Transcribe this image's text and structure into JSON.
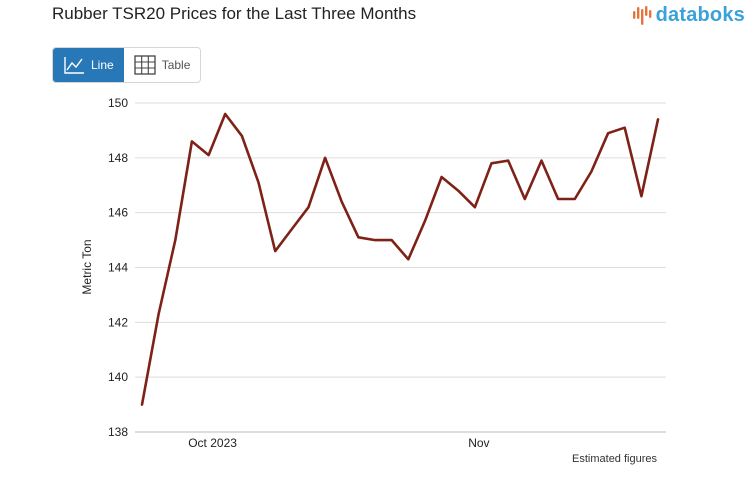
{
  "header": {
    "title": "Rubber TSR20 Prices for the Last Three Months",
    "brand": "databoks"
  },
  "toggle": {
    "line_label": "Line",
    "table_label": "Table",
    "active": "line"
  },
  "footnote": "Estimated figures",
  "colors": {
    "line": "#7e2217",
    "brand": "#3aa2d8",
    "brand_mark": "#e8733a",
    "toggle_active": "#2878b8",
    "grid": "#dddddd"
  },
  "chart_data": {
    "type": "line",
    "title": "Rubber TSR20 Prices for the Last Three Months",
    "ylabel": "Metric Ton",
    "xlabel": "",
    "ylim": [
      138,
      150
    ],
    "yticks": [
      138,
      140,
      142,
      144,
      146,
      148,
      150
    ],
    "xtick_labels": [
      {
        "label": "Oct 2023",
        "index": 4
      },
      {
        "label": "Nov",
        "index": 20
      }
    ],
    "grid": true,
    "series": [
      {
        "values": [
          139.0,
          142.3,
          145.0,
          148.6,
          148.1,
          149.6,
          148.8,
          147.1,
          144.6,
          145.4,
          146.2,
          148.0,
          146.4,
          145.1,
          145.0,
          145.0,
          144.3,
          145.7,
          147.3,
          146.8,
          146.2,
          147.8,
          147.9,
          146.5,
          147.9,
          146.5,
          146.5,
          147.5,
          148.9,
          149.1,
          146.6,
          149.4
        ]
      }
    ]
  }
}
